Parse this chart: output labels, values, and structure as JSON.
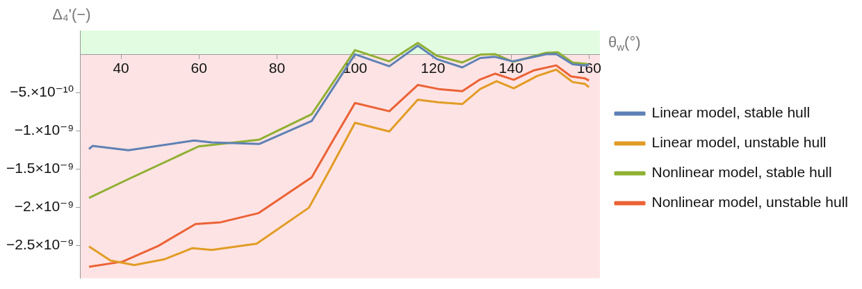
{
  "chart_data": {
    "type": "line",
    "xlabel": "θ$_{w}$(°)",
    "ylabel": "Δ₄'(−)",
    "xlim": [
      29.5,
      162.8
    ],
    "ylim": [
      -2.93e-09,
      3.1e-10
    ],
    "xticks": [
      40,
      60,
      80,
      100,
      120,
      140,
      160
    ],
    "yticks": [
      {
        "value": -5e-10,
        "label": "−5.×10⁻¹⁰"
      },
      {
        "value": -1e-09,
        "label": "−1.×10⁻⁹"
      },
      {
        "value": -1.5e-09,
        "label": "−1.5×10⁻⁹"
      },
      {
        "value": -2e-09,
        "label": "−2.×10⁻⁹"
      },
      {
        "value": -2.5e-09,
        "label": "−2.5×10⁻⁹"
      }
    ],
    "legend": "right",
    "bands": [
      {
        "axis": "y",
        "from": 0,
        "to": 3.1e-10,
        "color": "#e2fce2"
      },
      {
        "axis": "y",
        "from": -2.93e-09,
        "to": 0,
        "color": "#fee3e4"
      }
    ],
    "series": [
      {
        "name": "Linear model, stable hull",
        "color": "#5e81b5",
        "x": [
          31.8,
          32.7,
          41.9,
          58.7,
          63.3,
          75.5,
          88.9,
          100,
          108.8,
          116.1,
          121,
          127.5,
          132.1,
          135.9,
          140.5,
          149,
          151.6,
          155.8,
          158.9,
          160
        ],
        "values": [
          -1.24e-09,
          -1.2e-09,
          -1.256e-09,
          -1.129e-09,
          -1.153e-09,
          -1.173e-09,
          -8.73e-10,
          0,
          -1.57e-10,
          1.13e-10,
          -6.4e-11,
          -1.72e-10,
          -4.9e-11,
          -3.4e-11,
          -9.3e-11,
          0,
          4e-12,
          -1.31e-10,
          -1.46e-10,
          -1.37e-10
        ]
      },
      {
        "name": "Linear model, unstable hull",
        "color": "#e19c24",
        "x": [
          31.8,
          37.3,
          43.4,
          51.1,
          58.3,
          63.3,
          74.8,
          88.2,
          93.9,
          100,
          108.8,
          116.1,
          121.4,
          127.5,
          132.1,
          136.3,
          140.7,
          146.7,
          151.6,
          155.8,
          158.9,
          160
        ],
        "values": [
          -2.516e-09,
          -2.699e-09,
          -2.758e-09,
          -2.684e-09,
          -2.537e-09,
          -2.56e-09,
          -2.478e-09,
          -2.007e-09,
          -1.477e-09,
          -8.97e-10,
          -1.011e-09,
          -5.94e-10,
          -6.29e-10,
          -6.52e-10,
          -4.55e-10,
          -3.52e-10,
          -4.46e-10,
          -2.84e-10,
          -2.01e-10,
          -3.64e-10,
          -3.87e-10,
          -4.31e-10
        ]
      },
      {
        "name": "Nonlinear model, stable hull",
        "color": "#8fb032",
        "x": [
          31.8,
          42.3,
          59.9,
          75.5,
          88.9,
          100,
          108.8,
          116.1,
          121,
          127.5,
          132.1,
          135.9,
          140.5,
          149,
          152,
          155.8,
          159.7
        ],
        "values": [
          -1.88e-09,
          -1.624e-09,
          -1.206e-09,
          -1.117e-09,
          -7.84e-10,
          5.5e-11,
          -9.3e-11,
          1.48e-10,
          -1.9e-11,
          -1.08e-10,
          -4e-12,
          2e-12,
          -9.9e-11,
          1.9e-11,
          2.5e-11,
          -1.08e-10,
          -1.28e-10
        ]
      },
      {
        "name": "Nonlinear model, unstable hull",
        "color": "#eb6235",
        "x": [
          31.8,
          40.4,
          49.6,
          59.1,
          65.6,
          75.2,
          88.9,
          93.9,
          100,
          108.8,
          116.1,
          121.4,
          127.5,
          132.1,
          135.9,
          140.7,
          145.9,
          151.6,
          155.4,
          158.9,
          160
        ],
        "values": [
          -2.781e-09,
          -2.714e-09,
          -2.507e-09,
          -2.222e-09,
          -2.198e-09,
          -2.08e-09,
          -1.61e-09,
          -1.168e-09,
          -6.38e-10,
          -7.46e-10,
          -4.02e-10,
          -4.55e-10,
          -4.84e-10,
          -3.29e-10,
          -2.54e-10,
          -3.34e-10,
          -2.1e-10,
          -1.46e-10,
          -2.9e-10,
          -3.14e-10,
          -3.43e-10
        ]
      }
    ]
  }
}
